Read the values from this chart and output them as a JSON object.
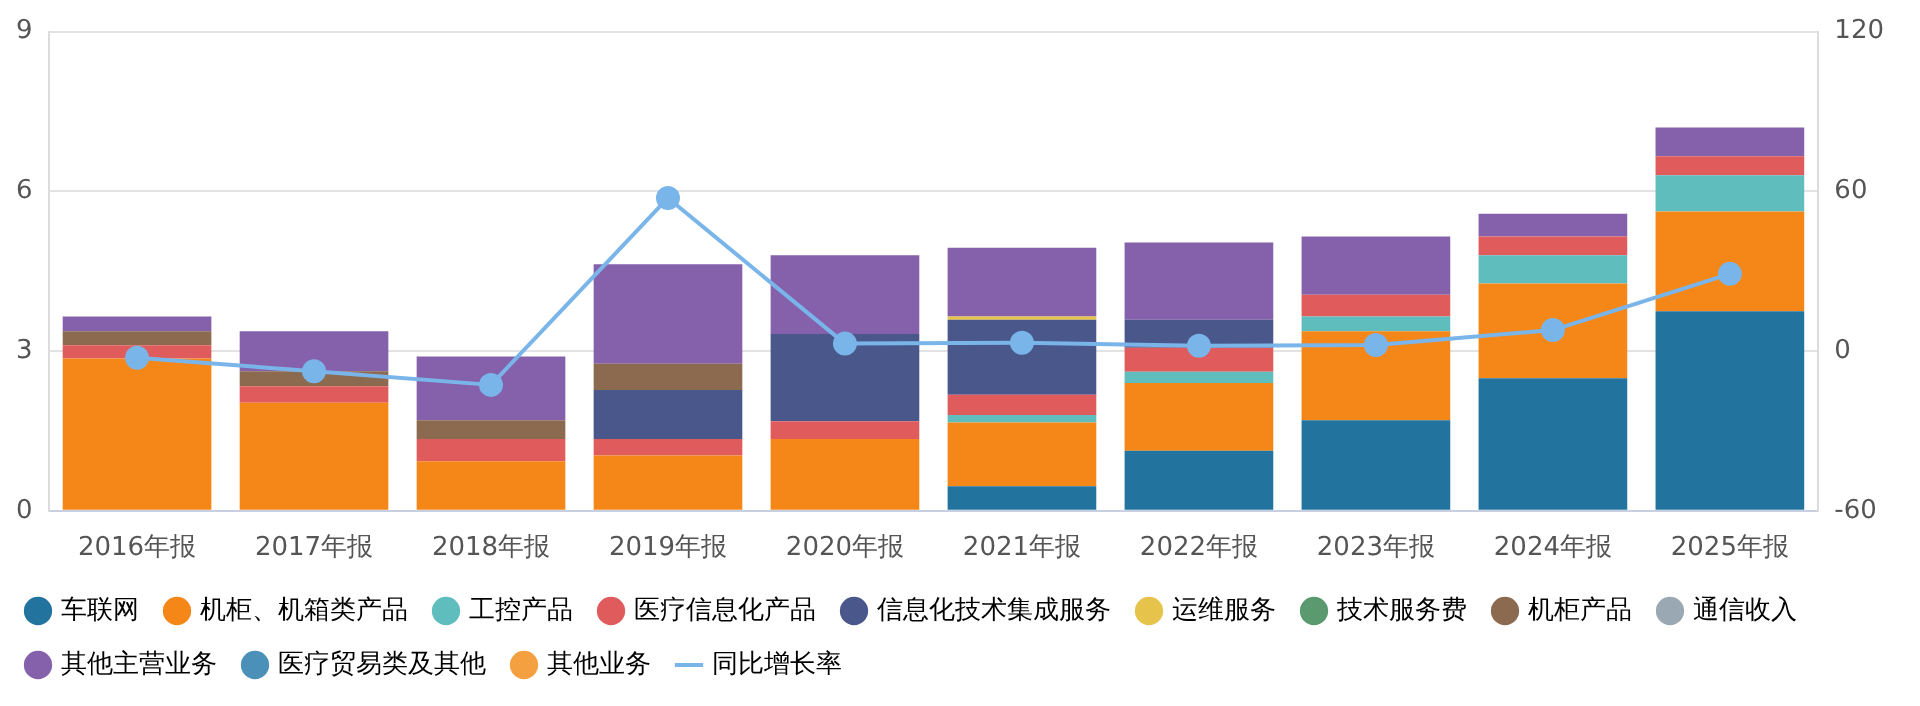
{
  "chart_data": {
    "type": "bar",
    "stacked": true,
    "categories": [
      "2016年报",
      "2017年报",
      "2018年报",
      "2019年报",
      "2020年报",
      "2021年报",
      "2022年报",
      "2023年报",
      "2024年报",
      "2025年报"
    ],
    "series": [
      {
        "name": "车联网",
        "color": "#22749f",
        "values": [
          null,
          null,
          null,
          null,
          null,
          0.46,
          1.13,
          1.7,
          2.49,
          3.75
        ]
      },
      {
        "name": "机柜、机箱类产品",
        "color": "#f58718",
        "values": [
          2.86,
          2.03,
          0.93,
          1.04,
          1.35,
          1.2,
          1.27,
          1.67,
          1.78,
          1.87
        ]
      },
      {
        "name": "工控产品",
        "color": "#5fbdbd",
        "values": [
          null,
          null,
          null,
          null,
          null,
          0.14,
          0.21,
          0.28,
          0.53,
          0.68
        ]
      },
      {
        "name": "医疗信息化产品",
        "color": "#e05b5b",
        "values": [
          0.25,
          0.31,
          0.42,
          0.31,
          0.33,
          0.38,
          0.45,
          0.41,
          0.35,
          0.36
        ]
      },
      {
        "name": "信息化技术集成服务",
        "color": "#4a578a",
        "values": [
          null,
          null,
          null,
          0.92,
          1.64,
          1.41,
          0.53,
          null,
          null,
          null
        ]
      },
      {
        "name": "运维服务",
        "color": "#e6c34a",
        "values": [
          null,
          null,
          null,
          null,
          null,
          0.06,
          null,
          null,
          null,
          null
        ]
      },
      {
        "name": "技术服务费",
        "color": "#5a9a6e",
        "values": [
          null,
          null,
          null,
          null,
          null,
          null,
          null,
          null,
          null,
          null
        ]
      },
      {
        "name": "机柜产品",
        "color": "#8b6a50",
        "values": [
          0.26,
          0.28,
          0.35,
          0.49,
          null,
          null,
          null,
          null,
          null,
          null
        ]
      },
      {
        "name": "通信收入",
        "color": "#9aa8b4",
        "values": [
          null,
          null,
          null,
          null,
          null,
          null,
          null,
          null,
          null,
          null
        ]
      },
      {
        "name": "其他主营业务",
        "color": "#8561ab",
        "values": [
          0.28,
          0.75,
          1.2,
          1.87,
          1.48,
          1.29,
          1.45,
          1.09,
          0.43,
          0.54
        ]
      },
      {
        "name": "医疗贸易类及其他",
        "color": "#4a90b8",
        "values": [
          null,
          null,
          null,
          null,
          null,
          null,
          null,
          null,
          null,
          null
        ]
      },
      {
        "name": "其他业务",
        "color": "#f5a040",
        "values": [
          null,
          null,
          null,
          null,
          null,
          null,
          null,
          null,
          null,
          null
        ]
      },
      {
        "name": "同比增长率",
        "type": "line",
        "axis": "y2",
        "color": "#7ab5ea",
        "values": [
          -2.5,
          -7.6,
          -12.7,
          57.5,
          2.8,
          3.1,
          2.0,
          2.3,
          7.9,
          29
        ]
      }
    ],
    "ylim": [
      0,
      9
    ],
    "yticks": [
      0,
      3,
      6,
      9
    ],
    "y2lim": [
      -60,
      120
    ],
    "y2ticks": [
      -60,
      0,
      60,
      120
    ],
    "grid": "y",
    "legend": "bottom",
    "marker": "circle"
  }
}
